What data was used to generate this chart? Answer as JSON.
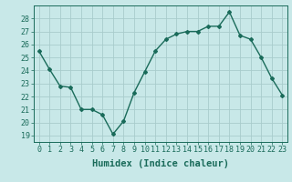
{
  "x": [
    0,
    1,
    2,
    3,
    4,
    5,
    6,
    7,
    8,
    9,
    10,
    11,
    12,
    13,
    14,
    15,
    16,
    17,
    18,
    19,
    20,
    21,
    22,
    23
  ],
  "y": [
    25.5,
    24.1,
    22.8,
    22.7,
    21.0,
    21.0,
    20.6,
    19.1,
    20.1,
    22.3,
    23.9,
    25.5,
    26.4,
    26.8,
    27.0,
    27.0,
    27.4,
    27.4,
    28.5,
    26.7,
    26.4,
    25.0,
    23.4,
    22.1
  ],
  "xlabel": "Humidex (Indice chaleur)",
  "xlim": [
    -0.5,
    23.5
  ],
  "ylim": [
    18.5,
    29.0
  ],
  "yticks": [
    19,
    20,
    21,
    22,
    23,
    24,
    25,
    26,
    27,
    28
  ],
  "xticks": [
    0,
    1,
    2,
    3,
    4,
    5,
    6,
    7,
    8,
    9,
    10,
    11,
    12,
    13,
    14,
    15,
    16,
    17,
    18,
    19,
    20,
    21,
    22,
    23
  ],
  "line_color": "#1a6b5a",
  "marker": "D",
  "marker_size": 2.0,
  "bg_color": "#c8e8e8",
  "grid_color": "#a8cccc",
  "label_fontsize": 7.5,
  "tick_fontsize": 6.0
}
